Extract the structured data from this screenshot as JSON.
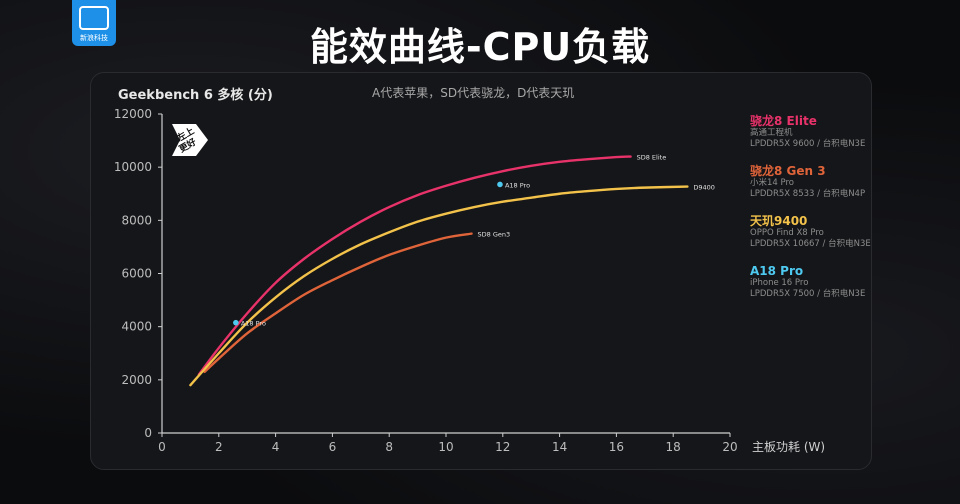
{
  "logo": {
    "text": "新浪科技"
  },
  "page_title": "能效曲线-CPU负载",
  "badge": {
    "text_line1": "左上",
    "text_line2": "更好"
  },
  "chart_data": {
    "type": "line",
    "title": "Geekbench 6  多核 (分)",
    "subtitle": "A代表苹果，SD代表骁龙，D代表天玑",
    "xlabel": "主板功耗 (W)",
    "ylabel": "",
    "xlim": [
      0,
      20
    ],
    "ylim": [
      0,
      12000
    ],
    "xticks": [
      0,
      2,
      4,
      6,
      8,
      10,
      12,
      14,
      16,
      18,
      20
    ],
    "yticks": [
      0,
      2000,
      4000,
      6000,
      8000,
      10000,
      12000
    ],
    "grid": false,
    "legend_position": "right",
    "series": [
      {
        "name": "骁龙8 Elite",
        "color": "#e8326a",
        "label": "SD8 Elite",
        "x": [
          1.3,
          2,
          3,
          4,
          5,
          6,
          7,
          8,
          9,
          10,
          11,
          12,
          13,
          14,
          15,
          16,
          16.5
        ],
        "y": [
          2200,
          3200,
          4500,
          5650,
          6550,
          7300,
          7950,
          8500,
          8950,
          9300,
          9600,
          9850,
          10050,
          10200,
          10300,
          10380,
          10400
        ]
      },
      {
        "name": "骁龙8 Gen 3",
        "color": "#e0643a",
        "label": "SD8 Gen3",
        "x": [
          1.5,
          2,
          3,
          4,
          5,
          6,
          7,
          8,
          9,
          10,
          10.9
        ],
        "y": [
          2300,
          2800,
          3750,
          4500,
          5200,
          5750,
          6250,
          6700,
          7050,
          7350,
          7500
        ]
      },
      {
        "name": "天玑9400",
        "color": "#f2c24a",
        "label": "D9400",
        "x": [
          1,
          2,
          3,
          4,
          5,
          6,
          7,
          8,
          9,
          10,
          11,
          12,
          13,
          14,
          15,
          16,
          17,
          18.5
        ],
        "y": [
          1800,
          3000,
          4150,
          5100,
          5900,
          6550,
          7100,
          7550,
          7950,
          8250,
          8500,
          8700,
          8850,
          9000,
          9100,
          9180,
          9230,
          9270
        ]
      }
    ],
    "points": [
      {
        "name": "A18 Pro",
        "label": "A18 Pro",
        "color": "#4ec9f0",
        "x": [
          2.6,
          11.9
        ],
        "y": [
          4150,
          9350
        ]
      }
    ]
  },
  "legend": [
    {
      "name": "骁龙8 Elite",
      "line1": "高通工程机",
      "line2": "LPDDR5X 9600 / 台积电N3E",
      "color": "#e8326a"
    },
    {
      "name": "骁龙8 Gen 3",
      "line1": "小米14 Pro",
      "line2": "LPDDR5X 8533 / 台积电N4P",
      "color": "#e0643a"
    },
    {
      "name": "天玑9400",
      "line1": "OPPO Find X8 Pro",
      "line2": "LPDDR5X 10667 / 台积电N3E",
      "color": "#f2c24a"
    },
    {
      "name": "A18 Pro",
      "line1": "iPhone 16 Pro",
      "line2": "LPDDR5X 7500 / 台积电N3E",
      "color": "#4ec9f0"
    }
  ]
}
